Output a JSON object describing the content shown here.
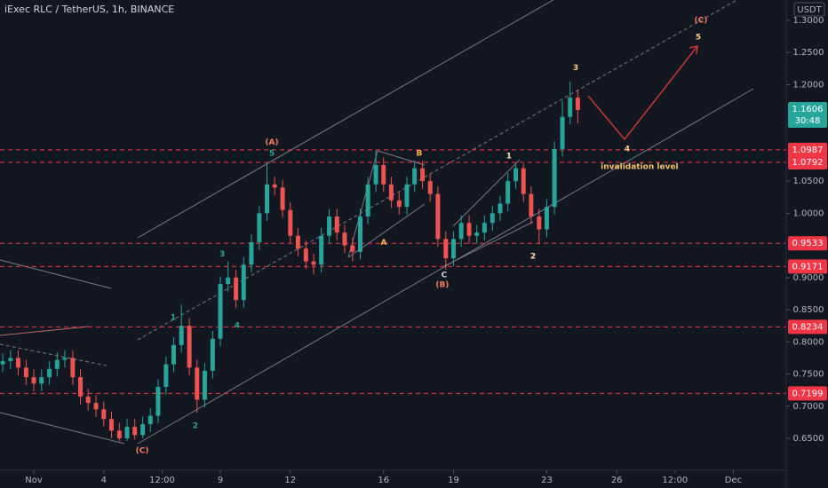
{
  "chart_data": {
    "type": "candlestick",
    "title": "iExec RLC / TetherUS, 1h, BINANCE",
    "unit": "USDT",
    "up_color": "#26a69a",
    "down_color": "#ef5350",
    "grid": false,
    "xlim": [
      -0.45,
      33.27
    ],
    "ylim": [
      0.6003,
      1.3317
    ],
    "xticks": [
      {
        "value": 1,
        "label": "Nov"
      },
      4,
      {
        "value": 6.5,
        "label": "12:00"
      },
      9,
      12,
      16,
      19,
      23,
      26,
      {
        "value": 28.5,
        "label": "12:00"
      },
      {
        "value": 31,
        "label": "Dec"
      }
    ],
    "yticks": [
      {
        "value": 1.3,
        "label": "1.3000"
      },
      {
        "value": 1.25,
        "label": "1.2500"
      },
      {
        "value": 1.2,
        "label": "1.2000"
      },
      {
        "value": 1.05,
        "label": "1.0500"
      },
      {
        "value": 1.0,
        "label": "1.0000"
      },
      {
        "value": 0.9,
        "label": "0.9000"
      },
      {
        "value": 0.85,
        "label": "0.8500"
      },
      {
        "value": 0.8,
        "label": "0.8000"
      },
      {
        "value": 0.75,
        "label": "0.7500"
      },
      {
        "value": 0.7,
        "label": "0.7000"
      },
      {
        "value": 0.65,
        "label": "0.6500"
      }
    ],
    "levels": [
      1.0987,
      1.0792,
      0.9533,
      0.9171,
      0.8234,
      0.7199
    ],
    "level_color": "#f23645",
    "last_price": 1.1606,
    "countdown": "30:48",
    "x": [
      -0.33,
      0,
      0.33,
      0.67,
      1,
      1.33,
      1.67,
      2,
      2.33,
      2.67,
      3,
      3.33,
      3.67,
      4,
      4.33,
      4.67,
      5,
      5.33,
      5.67,
      6,
      6.33,
      6.67,
      7,
      7.33,
      7.67,
      8,
      8.33,
      8.67,
      9,
      9.33,
      9.67,
      10,
      10.33,
      10.67,
      11,
      11.33,
      11.67,
      12,
      12.33,
      12.67,
      13,
      13.33,
      13.67,
      14,
      14.33,
      14.67,
      15,
      15.33,
      15.67,
      16,
      16.33,
      16.67,
      17,
      17.33,
      17.67,
      18,
      18.33,
      18.67,
      19,
      19.33,
      19.67,
      20,
      20.33,
      20.67,
      21,
      21.33,
      21.67,
      22,
      22.33,
      22.67,
      23,
      23.33,
      23.67,
      24,
      24.33
    ],
    "open": [
      0.765,
      0.77,
      0.775,
      0.76,
      0.745,
      0.735,
      0.745,
      0.758,
      0.772,
      0.775,
      0.745,
      0.715,
      0.705,
      0.695,
      0.68,
      0.662,
      0.65,
      0.668,
      0.655,
      0.672,
      0.685,
      0.73,
      0.765,
      0.795,
      0.825,
      0.76,
      0.71,
      0.755,
      0.805,
      0.89,
      0.9,
      0.865,
      0.92,
      0.955,
      1.0,
      1.045,
      1.04,
      1.005,
      0.965,
      0.945,
      0.925,
      0.92,
      0.965,
      0.995,
      0.97,
      0.95,
      0.94,
      0.995,
      1.045,
      1.075,
      1.045,
      1.02,
      1.01,
      1.045,
      1.07,
      1.05,
      1.03,
      0.96,
      0.93,
      0.96,
      0.985,
      0.965,
      0.97,
      0.985,
      1.0,
      1.015,
      1.05,
      1.07,
      1.03,
      0.995,
      0.975,
      1.01,
      1.1,
      1.15,
      1.18
    ],
    "high": [
      0.782,
      0.787,
      0.787,
      0.772,
      0.757,
      0.757,
      0.77,
      0.784,
      0.787,
      0.787,
      0.757,
      0.727,
      0.717,
      0.707,
      0.692,
      0.674,
      0.68,
      0.68,
      0.684,
      0.697,
      0.742,
      0.777,
      0.807,
      0.858,
      0.837,
      0.772,
      0.767,
      0.817,
      0.902,
      0.925,
      0.912,
      0.932,
      0.967,
      1.012,
      1.077,
      1.057,
      1.052,
      1.017,
      0.977,
      0.957,
      0.937,
      0.977,
      1.007,
      1.007,
      0.982,
      0.962,
      1.007,
      1.057,
      1.098,
      1.087,
      1.057,
      1.032,
      1.057,
      1.082,
      1.082,
      1.062,
      1.042,
      0.972,
      0.972,
      0.997,
      0.997,
      0.982,
      0.997,
      1.012,
      1.027,
      1.062,
      1.077,
      1.077,
      1.042,
      1.007,
      1.022,
      1.112,
      1.175,
      1.205,
      1.192
    ],
    "low": [
      0.753,
      0.758,
      0.748,
      0.733,
      0.723,
      0.723,
      0.733,
      0.746,
      0.76,
      0.733,
      0.703,
      0.693,
      0.683,
      0.668,
      0.65,
      0.645,
      0.646,
      0.648,
      0.65,
      0.66,
      0.673,
      0.718,
      0.753,
      0.783,
      0.748,
      0.69,
      0.698,
      0.743,
      0.793,
      0.878,
      0.853,
      0.853,
      0.908,
      0.943,
      0.988,
      1.028,
      0.993,
      0.953,
      0.933,
      0.913,
      0.905,
      0.908,
      0.953,
      0.958,
      0.938,
      0.925,
      0.928,
      0.983,
      1.033,
      1.033,
      1.008,
      0.998,
      0.998,
      1.033,
      1.038,
      1.018,
      0.948,
      0.912,
      0.918,
      0.948,
      0.953,
      0.953,
      0.958,
      0.973,
      0.988,
      1.003,
      1.038,
      1.018,
      0.983,
      0.952,
      0.963,
      0.998,
      1.088,
      1.138,
      1.14
    ],
    "close": [
      0.77,
      0.775,
      0.76,
      0.745,
      0.735,
      0.745,
      0.758,
      0.772,
      0.775,
      0.745,
      0.715,
      0.705,
      0.695,
      0.68,
      0.662,
      0.65,
      0.668,
      0.655,
      0.672,
      0.685,
      0.73,
      0.765,
      0.795,
      0.825,
      0.76,
      0.71,
      0.755,
      0.805,
      0.89,
      0.9,
      0.865,
      0.92,
      0.955,
      1.0,
      1.045,
      1.04,
      1.005,
      0.965,
      0.945,
      0.925,
      0.92,
      0.965,
      0.995,
      0.97,
      0.95,
      0.94,
      0.995,
      1.045,
      1.075,
      1.045,
      1.02,
      1.01,
      1.045,
      1.07,
      1.05,
      1.03,
      0.96,
      0.93,
      0.96,
      0.985,
      0.965,
      0.97,
      0.985,
      1.0,
      1.015,
      1.05,
      1.07,
      1.03,
      0.995,
      0.975,
      1.01,
      1.1,
      1.15,
      1.18,
      1.1606
    ],
    "annotations": [
      {
        "text": "(A)",
        "x": 11.21,
        "y": 1.11,
        "color": "#f77c5a"
      },
      {
        "text": "5",
        "x": 11.21,
        "y": 1.093,
        "color": "#26a69a"
      },
      {
        "text": "B",
        "x": 17.53,
        "y": 1.093,
        "color": "#ffb74d"
      },
      {
        "text": "A",
        "x": 16.01,
        "y": 0.954,
        "color": "#ffb74d"
      },
      {
        "text": "C",
        "x": 18.6,
        "y": 0.904,
        "color": "#d1d4dc"
      },
      {
        "text": "(B)",
        "x": 18.52,
        "y": 0.889,
        "color": "#f77c5a"
      },
      {
        "text": "1",
        "x": 21.38,
        "y": 1.089,
        "color": "#ffe0b2"
      },
      {
        "text": "2",
        "x": 22.41,
        "y": 0.933,
        "color": "#ffe0b2"
      },
      {
        "text": "3",
        "x": 24.24,
        "y": 1.226,
        "color": "#ffcc80"
      },
      {
        "text": "4",
        "x": 26.45,
        "y": 1.1,
        "color": "#ffcc80"
      },
      {
        "text": "5",
        "x": 29.5,
        "y": 1.274,
        "color": "#ffcc80"
      },
      {
        "text": "(C)",
        "x": 29.61,
        "y": 1.3,
        "color": "#f77c5a"
      },
      {
        "text": "1",
        "x": 6.98,
        "y": 0.838,
        "color": "#26a69a"
      },
      {
        "text": "3",
        "x": 9.08,
        "y": 0.936,
        "color": "#26a69a"
      },
      {
        "text": "4",
        "x": 9.72,
        "y": 0.825,
        "color": "#26a69a"
      },
      {
        "text": "2",
        "x": 7.93,
        "y": 0.669,
        "color": "#26a69a"
      },
      {
        "text": "(C)",
        "x": 5.65,
        "y": 0.631,
        "color": "#f77c5a"
      },
      {
        "text": "invalidation level",
        "x": 26.98,
        "y": 1.072,
        "color": "#f0c060"
      }
    ]
  }
}
